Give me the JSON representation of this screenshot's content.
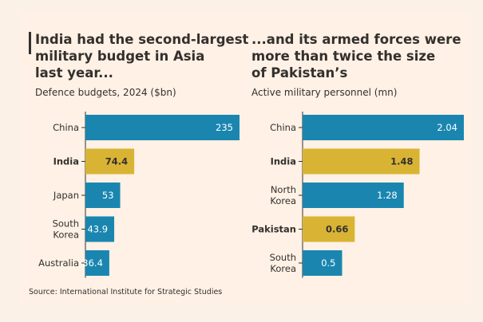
{
  "colors": {
    "highlight": "#d9b434",
    "default": "#1a86b0",
    "background": "#fff1e5",
    "text": "#33302e"
  },
  "left_panel": {
    "title_lines": [
      "India had the second-largest",
      "military budget in Asia",
      "last year..."
    ],
    "subtitle": "Defence budgets, 2024 ($bn)"
  },
  "right_panel": {
    "title_lines": [
      "...and its armed forces were",
      "more than twice the size",
      "of Pakistan’s"
    ],
    "subtitle": "Active military personnel (mn)"
  },
  "source": "Source: International Institute for Strategic Studies",
  "chart_data": [
    {
      "type": "bar",
      "orientation": "horizontal",
      "title": "India had the second-largest military budget in Asia last year...",
      "subtitle": "Defence budgets, 2024 ($bn)",
      "categories": [
        [
          "China"
        ],
        [
          "India"
        ],
        [
          "Japan"
        ],
        [
          "South",
          "Korea"
        ],
        [
          "Australia"
        ]
      ],
      "values": [
        235,
        74.4,
        53,
        43.9,
        36.4
      ],
      "labels": [
        "235",
        "74.4",
        "53",
        "43.9",
        "36.4"
      ],
      "highlight": [
        false,
        true,
        false,
        false,
        false
      ],
      "xlim": [
        0,
        235
      ]
    },
    {
      "type": "bar",
      "orientation": "horizontal",
      "title": "...and its armed forces were more than twice the size of Pakistan’s",
      "subtitle": "Active military personnel (mn)",
      "categories": [
        [
          "China"
        ],
        [
          "India"
        ],
        [
          "North",
          "Korea"
        ],
        [
          "Pakistan"
        ],
        [
          "South",
          "Korea"
        ]
      ],
      "values": [
        2.04,
        1.48,
        1.28,
        0.66,
        0.5
      ],
      "labels": [
        "2.04",
        "1.48",
        "1.28",
        "0.66",
        "0.5"
      ],
      "highlight": [
        false,
        true,
        false,
        true,
        false
      ],
      "xlim": [
        0,
        2.04
      ]
    }
  ]
}
